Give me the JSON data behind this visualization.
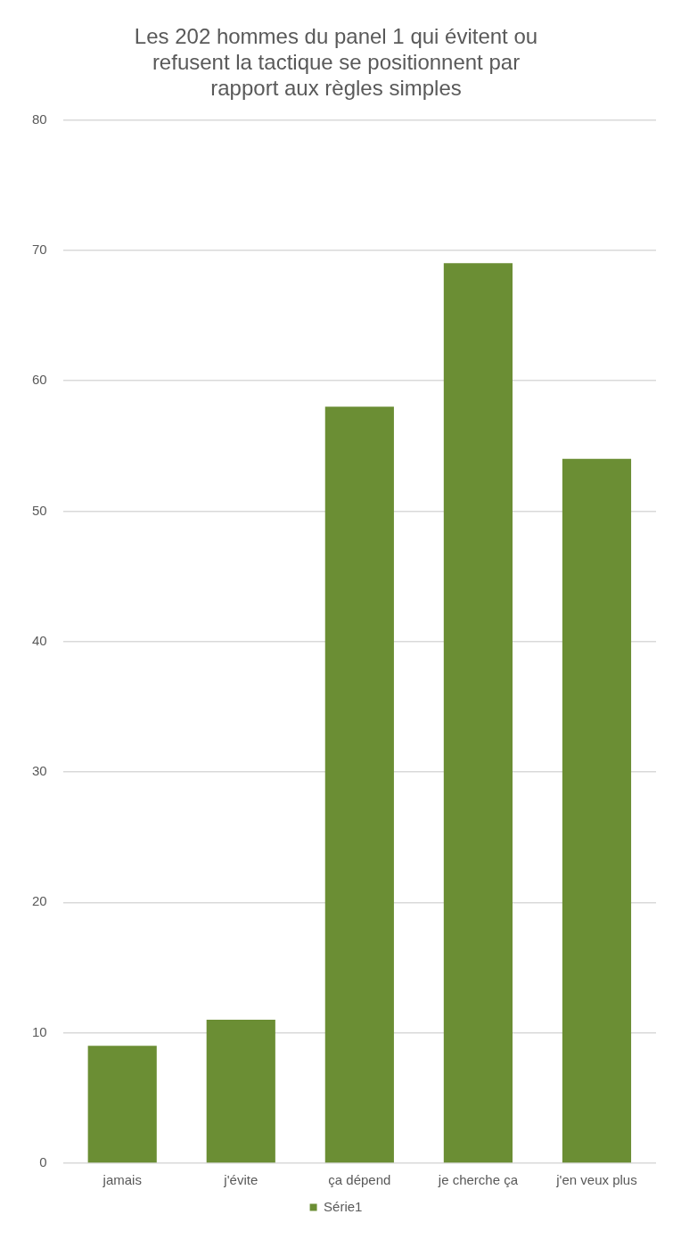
{
  "chart_data": {
    "type": "bar",
    "title": "Les 202 hommes du panel 1 qui évitent ou refusent la tactique se positionnent par rapport aux règles simples",
    "categories": [
      "jamais",
      "j'évite",
      "ça dépend",
      "je cherche ça",
      "j'en veux plus"
    ],
    "series": [
      {
        "name": "Série1",
        "color": "#6b8e34",
        "values": [
          9,
          11,
          58,
          69,
          54
        ]
      }
    ],
    "ylim": [
      0,
      80
    ],
    "yticks": [
      0,
      10,
      20,
      30,
      40,
      50,
      60,
      70,
      80
    ],
    "grid": "y",
    "legend": "bottom"
  }
}
